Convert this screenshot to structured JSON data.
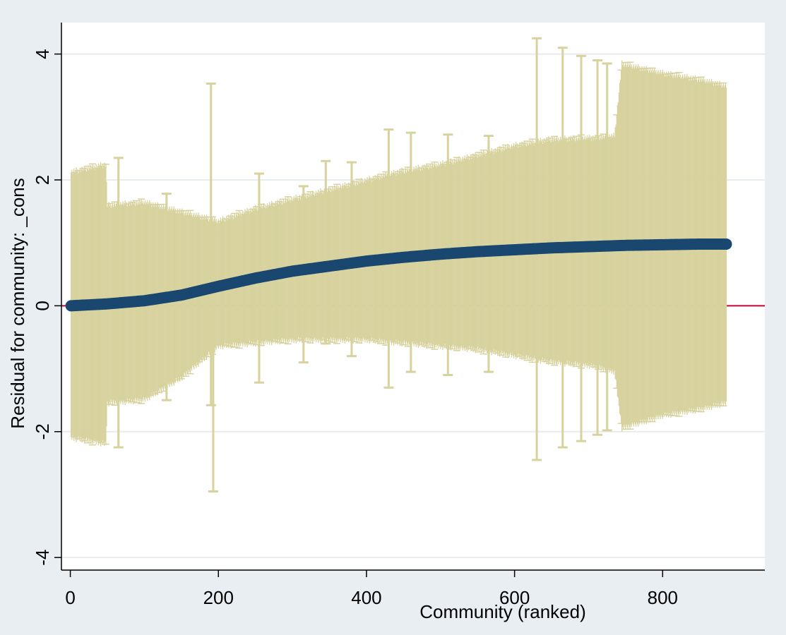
{
  "chart_data": {
    "type": "scatter",
    "title": "",
    "xlabel": "Community (ranked)",
    "ylabel": "Residual for community: _cons",
    "xlim": [
      -12,
      938
    ],
    "ylim": [
      -4.2,
      4.5
    ],
    "xticks": [
      0,
      200,
      400,
      600,
      800
    ],
    "yticks": [
      -4,
      -2,
      0,
      2,
      4
    ],
    "xtick_labels": [
      "0",
      "200",
      "400",
      "600",
      "800"
    ],
    "ytick_labels": [
      "-4",
      "-2",
      "0",
      "2",
      "4"
    ],
    "grid": "horizontal",
    "n_points": 886,
    "reference_line": {
      "y": 0,
      "color": "#c10534"
    },
    "colors": {
      "plot_background": "#ffffff",
      "page_background": "#e9eef2",
      "gridline": "#e6ecef",
      "error_bar": "#d7d29e",
      "marker": "#1a476f"
    },
    "residual_curve": {
      "x": [
        1,
        50,
        100,
        150,
        200,
        250,
        300,
        350,
        400,
        450,
        500,
        550,
        600,
        650,
        700,
        750,
        800,
        850,
        886
      ],
      "y": [
        0.0,
        0.03,
        0.08,
        0.17,
        0.31,
        0.44,
        0.55,
        0.63,
        0.71,
        0.77,
        0.82,
        0.86,
        0.89,
        0.92,
        0.94,
        0.96,
        0.97,
        0.98,
        0.98
      ]
    },
    "error_bar_envelope": {
      "x": [
        1,
        48,
        50,
        100,
        150,
        200,
        250,
        300,
        350,
        400,
        450,
        500,
        550,
        600,
        650,
        700,
        735,
        745,
        800,
        850,
        886
      ],
      "upper": [
        2.08,
        2.2,
        1.55,
        1.6,
        1.45,
        1.3,
        1.5,
        1.65,
        1.8,
        1.95,
        2.1,
        2.2,
        2.35,
        2.5,
        2.6,
        2.62,
        2.65,
        3.8,
        3.65,
        3.55,
        3.45
      ],
      "lower": [
        -2.05,
        -2.15,
        -1.5,
        -1.45,
        -1.1,
        -0.6,
        -0.55,
        -0.5,
        -0.5,
        -0.5,
        -0.55,
        -0.6,
        -0.65,
        -0.75,
        -0.85,
        -0.9,
        -1.0,
        -1.9,
        -1.7,
        -1.6,
        -1.5
      ]
    },
    "outlier_error_bars": [
      {
        "x": 65,
        "lower": -2.25,
        "upper": 2.35
      },
      {
        "x": 130,
        "lower": -1.5,
        "upper": 1.78
      },
      {
        "x": 190,
        "lower": -1.58,
        "upper": 3.53
      },
      {
        "x": 193,
        "lower": -2.95,
        "upper": 1.1
      },
      {
        "x": 255,
        "lower": -1.22,
        "upper": 2.1
      },
      {
        "x": 315,
        "lower": -0.9,
        "upper": 1.9
      },
      {
        "x": 345,
        "lower": -0.6,
        "upper": 2.3
      },
      {
        "x": 380,
        "lower": -0.8,
        "upper": 2.28
      },
      {
        "x": 430,
        "lower": -1.3,
        "upper": 2.8
      },
      {
        "x": 460,
        "lower": -1.05,
        "upper": 2.75
      },
      {
        "x": 510,
        "lower": -1.1,
        "upper": 2.72
      },
      {
        "x": 565,
        "lower": -1.05,
        "upper": 2.7
      },
      {
        "x": 630,
        "lower": -2.45,
        "upper": 4.25
      },
      {
        "x": 665,
        "lower": -2.25,
        "upper": 4.1
      },
      {
        "x": 690,
        "lower": -2.15,
        "upper": 3.97
      },
      {
        "x": 712,
        "lower": -2.05,
        "upper": 3.9
      },
      {
        "x": 725,
        "lower": -1.98,
        "upper": 3.85
      }
    ]
  }
}
